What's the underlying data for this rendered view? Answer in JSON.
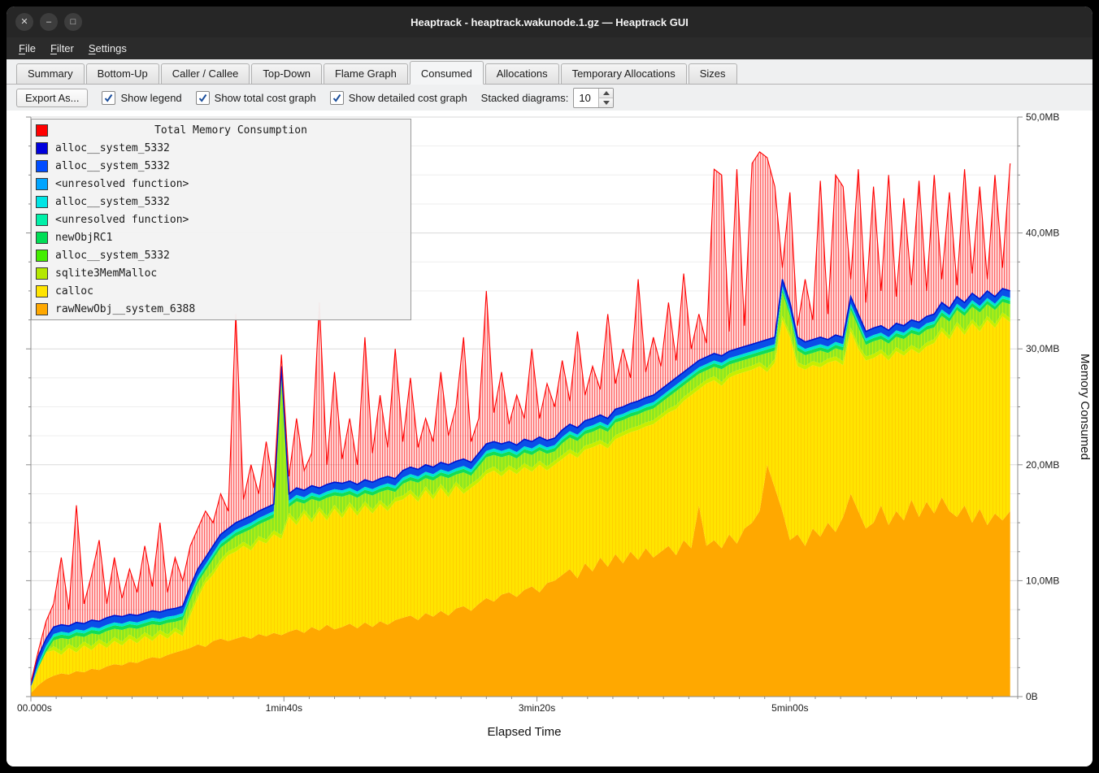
{
  "window": {
    "title": "Heaptrack - heaptrack.wakunode.1.gz — Heaptrack GUI",
    "buttons": [
      {
        "id": "close",
        "glyph": "✕"
      },
      {
        "id": "minimize",
        "glyph": "–"
      },
      {
        "id": "maximize",
        "glyph": "□"
      }
    ]
  },
  "menu": {
    "items": [
      {
        "u": "F",
        "rest": "ile"
      },
      {
        "u": "F",
        "rest": "ilter"
      },
      {
        "u": "S",
        "rest": "ettings"
      }
    ]
  },
  "tabs": [
    {
      "label": "Summary",
      "active": false
    },
    {
      "label": "Bottom-Up",
      "active": false
    },
    {
      "label": "Caller / Callee",
      "active": false
    },
    {
      "label": "Top-Down",
      "active": false
    },
    {
      "label": "Flame Graph",
      "active": false
    },
    {
      "label": "Consumed",
      "active": true
    },
    {
      "label": "Allocations",
      "active": false
    },
    {
      "label": "Temporary Allocations",
      "active": false
    },
    {
      "label": "Sizes",
      "active": false
    }
  ],
  "toolbar": {
    "export_label": "Export As...",
    "checkboxes": [
      {
        "label": "Show legend",
        "checked": true
      },
      {
        "label": "Show total cost graph",
        "checked": true
      },
      {
        "label": "Show detailed cost graph",
        "checked": true
      }
    ],
    "stacked_label": "Stacked diagrams:",
    "stacked_value": "10"
  },
  "chart_data": {
    "type": "area",
    "stacked": true,
    "title": "Total Memory Consumption",
    "xlabel": "Elapsed Time",
    "ylabel": "Memory Consumed",
    "x_range_s": [
      0,
      390
    ],
    "y_range_mb": [
      0,
      50
    ],
    "x_ticks": [
      {
        "s": 0,
        "label": "00.000s"
      },
      {
        "s": 100,
        "label": "1min40s"
      },
      {
        "s": 200,
        "label": "3min20s"
      },
      {
        "s": 300,
        "label": "5min00s"
      }
    ],
    "y_ticks": [
      {
        "mb": 0,
        "label": "0B"
      },
      {
        "mb": 10,
        "label": "10,0MB"
      },
      {
        "mb": 20,
        "label": "20,0MB"
      },
      {
        "mb": 30,
        "label": "30,0MB"
      },
      {
        "mb": 40,
        "label": "40,0MB"
      },
      {
        "mb": 50,
        "label": "50,0MB"
      }
    ],
    "legend": [
      {
        "label": "Total Memory Consumption",
        "color": "#ff0000",
        "title": true
      },
      {
        "label": "alloc__system_5332",
        "color": "#0000dd"
      },
      {
        "label": "alloc__system_5332",
        "color": "#004cff"
      },
      {
        "label": "<unresolved function>",
        "color": "#00a4ff"
      },
      {
        "label": "alloc__system_5332",
        "color": "#00e4e4"
      },
      {
        "label": "<unresolved function>",
        "color": "#00f0a8"
      },
      {
        "label": "newObjRC1",
        "color": "#00dd55"
      },
      {
        "label": "alloc__system_5332",
        "color": "#44ee00"
      },
      {
        "label": "sqlite3MemMalloc",
        "color": "#b4e800"
      },
      {
        "label": "calloc",
        "color": "#ffe400"
      },
      {
        "label": "rawNewObj__system_6388",
        "color": "#ffa800"
      }
    ],
    "band_colors": {
      "orange": "#ffa800",
      "yellow": "#ffe400",
      "sqlite": "#c8ee00",
      "lightgreen": "#8fe822",
      "green": "#12dd55",
      "cyan": "#00e6d0",
      "blue": "#0a4fe8",
      "blue_edge": "#0013d0",
      "red": "#ff0000"
    },
    "band_offsets_mb": {
      "sqlite": 0.35,
      "green": 0.3,
      "cyan": 0.25,
      "blue": 0.6
    },
    "series": {
      "sample_step_s": 3,
      "orange_top_mb": [
        0.3,
        1.0,
        1.5,
        1.8,
        2.0,
        1.9,
        2.2,
        2.1,
        2.4,
        2.3,
        2.6,
        2.8,
        2.7,
        3.0,
        2.9,
        3.2,
        3.4,
        3.3,
        3.6,
        3.8,
        4.0,
        4.2,
        4.5,
        4.3,
        4.8,
        5.0,
        4.8,
        5.0,
        5.2,
        5.0,
        5.4,
        5.2,
        5.5,
        5.3,
        5.6,
        5.8,
        5.5,
        6.0,
        5.7,
        6.2,
        5.8,
        6.0,
        6.3,
        5.9,
        6.4,
        6.0,
        6.5,
        6.2,
        6.6,
        6.8,
        7.0,
        6.6,
        7.2,
        6.9,
        7.4,
        7.0,
        7.6,
        7.8,
        7.4,
        8.0,
        8.5,
        8.2,
        8.8,
        9.0,
        8.6,
        9.2,
        9.5,
        9.0,
        9.8,
        10.0,
        10.5,
        11.0,
        10.2,
        11.5,
        10.8,
        12.0,
        11.2,
        12.3,
        11.5,
        12.5,
        11.8,
        12.8,
        12.0,
        12.5,
        13.0,
        12.2,
        13.5,
        12.8,
        16.5,
        13.0,
        13.5,
        12.8,
        14.0,
        13.2,
        14.5,
        15.0,
        16.0,
        20.0,
        18.0,
        16.0,
        13.5,
        14.0,
        13.0,
        14.5,
        13.8,
        15.0,
        14.2,
        15.5,
        17.5,
        16.0,
        14.5,
        15.0,
        16.5,
        14.8,
        16.0,
        15.2,
        17.0,
        15.5,
        16.8,
        15.8,
        17.2,
        16.0,
        15.5,
        16.5,
        15.0,
        16.2,
        14.8,
        15.8,
        15.2,
        16.0
      ],
      "yellow_top_mb": [
        0.8,
        2.5,
        3.8,
        4.0,
        3.6,
        4.2,
        3.8,
        4.4,
        4.0,
        4.6,
        4.2,
        4.8,
        4.4,
        5.0,
        4.6,
        5.2,
        4.8,
        5.4,
        5.0,
        5.6,
        5.2,
        7.0,
        8.5,
        9.8,
        10.5,
        11.5,
        12.2,
        12.5,
        13.0,
        12.6,
        13.5,
        13.2,
        14.0,
        13.6,
        15.5,
        14.8,
        15.8,
        15.0,
        16.0,
        15.2,
        16.2,
        15.4,
        16.4,
        15.6,
        16.5,
        15.8,
        16.6,
        16.0,
        16.8,
        17.0,
        17.5,
        16.8,
        17.8,
        17.0,
        18.0,
        17.2,
        18.2,
        17.5,
        18.0,
        18.5,
        19.2,
        19.5,
        19.0,
        19.6,
        19.2,
        19.8,
        19.4,
        20.0,
        19.5,
        20.0,
        20.5,
        21.0,
        20.6,
        21.3,
        21.5,
        21.8,
        21.4,
        22.2,
        22.5,
        22.8,
        23.0,
        23.3,
        23.5,
        24.0,
        24.5,
        24.8,
        25.5,
        26.0,
        26.5,
        27.0,
        27.3,
        26.8,
        27.5,
        27.8,
        28.0,
        28.2,
        28.5,
        28.0,
        28.8,
        32.5,
        31.0,
        28.5,
        28.2,
        28.6,
        28.4,
        28.8,
        29.0,
        28.6,
        31.5,
        30.0,
        29.0,
        29.2,
        29.6,
        29.0,
        29.8,
        29.4,
        30.0,
        29.6,
        30.2,
        30.5,
        31.5,
        30.8,
        32.0,
        31.2,
        32.2,
        31.5,
        32.5,
        31.8,
        32.8,
        32.3
      ],
      "stack_top_mb": [
        1.0,
        3.5,
        5.0,
        6.0,
        6.2,
        6.1,
        6.4,
        6.3,
        6.6,
        6.5,
        6.8,
        7.0,
        6.9,
        7.1,
        7.0,
        7.2,
        7.4,
        7.3,
        7.5,
        7.6,
        7.8,
        9.5,
        11.0,
        12.0,
        13.0,
        14.0,
        14.5,
        15.0,
        15.3,
        15.6,
        16.0,
        16.3,
        16.6,
        28.5,
        17.5,
        18.0,
        17.8,
        18.2,
        18.0,
        18.3,
        18.5,
        18.4,
        18.6,
        18.3,
        18.7,
        18.5,
        18.8,
        19.0,
        18.8,
        19.5,
        19.8,
        19.6,
        20.0,
        19.8,
        20.2,
        20.0,
        20.3,
        20.5,
        20.2,
        21.0,
        21.8,
        22.0,
        21.8,
        22.0,
        21.7,
        22.2,
        22.0,
        22.4,
        22.1,
        22.3,
        23.0,
        23.5,
        23.2,
        23.8,
        24.0,
        24.3,
        24.0,
        24.8,
        25.0,
        25.3,
        25.5,
        25.8,
        26.0,
        26.5,
        27.0,
        27.5,
        28.0,
        28.5,
        29.0,
        29.3,
        29.6,
        29.4,
        29.8,
        30.0,
        30.2,
        30.4,
        30.6,
        30.8,
        31.0,
        36.0,
        34.0,
        31.0,
        30.6,
        30.8,
        31.0,
        30.8,
        31.2,
        31.0,
        34.5,
        33.0,
        31.5,
        31.8,
        32.0,
        31.6,
        32.2,
        32.0,
        32.5,
        32.3,
        32.8,
        33.0,
        34.0,
        33.5,
        34.5,
        34.0,
        34.8,
        34.3,
        35.0,
        34.5,
        35.2,
        35.0
      ],
      "total_mb": [
        1.2,
        4.0,
        6.5,
        8.0,
        12.0,
        7.5,
        16.5,
        8.0,
        10.5,
        13.5,
        8.0,
        12.0,
        8.5,
        11.0,
        9.0,
        13.0,
        9.5,
        15.0,
        9.0,
        12.0,
        10.0,
        13.0,
        14.5,
        16.0,
        15.0,
        17.5,
        16.0,
        33.0,
        17.0,
        20.0,
        17.5,
        22.0,
        18.0,
        29.5,
        19.0,
        24.0,
        19.5,
        21.0,
        34.0,
        20.0,
        28.0,
        20.5,
        24.0,
        20.0,
        31.0,
        21.0,
        26.0,
        21.5,
        30.0,
        22.0,
        27.5,
        21.5,
        24.0,
        22.0,
        28.0,
        22.5,
        25.0,
        31.0,
        22.0,
        24.0,
        35.0,
        24.5,
        28.0,
        23.5,
        26.0,
        24.0,
        30.0,
        24.0,
        27.0,
        25.0,
        29.0,
        25.5,
        31.5,
        26.0,
        28.5,
        26.5,
        33.0,
        27.0,
        30.0,
        27.5,
        36.0,
        28.0,
        31.0,
        28.5,
        34.0,
        29.0,
        36.5,
        30.0,
        33.0,
        30.5,
        45.5,
        45.0,
        31.5,
        45.5,
        32.0,
        46.0,
        47.0,
        46.5,
        44.0,
        37.0,
        43.5,
        32.0,
        36.0,
        32.5,
        44.5,
        33.0,
        45.0,
        44.0,
        36.0,
        45.5,
        34.0,
        44.0,
        35.0,
        45.0,
        34.5,
        43.0,
        35.5,
        44.5,
        35.0,
        45.0,
        36.0,
        43.5,
        35.5,
        45.5,
        36.5,
        44.0,
        36.0,
        45.0,
        37.0,
        46.0
      ]
    }
  }
}
